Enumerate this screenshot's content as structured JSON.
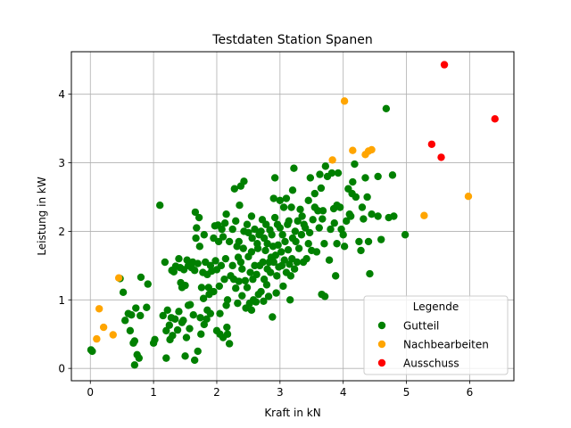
{
  "chart_data": {
    "type": "scatter",
    "title": "Testdaten Station Spanen",
    "xlabel": "Kraft in kN",
    "ylabel": "Leistung in kW",
    "xlim": [
      -0.3,
      6.7
    ],
    "ylim": [
      -0.18,
      4.62
    ],
    "xticks": [
      0,
      1,
      2,
      3,
      4,
      5,
      6
    ],
    "yticks": [
      0,
      1,
      2,
      3,
      4
    ],
    "grid": true,
    "legend": {
      "title": "Legende",
      "placement": "lower-right"
    },
    "series": [
      {
        "name": "Gutteil",
        "color": "#008000",
        "points": [
          [
            0.01,
            0.27
          ],
          [
            0.03,
            0.25
          ],
          [
            0.47,
            1.31
          ],
          [
            0.52,
            1.11
          ],
          [
            0.55,
            0.7
          ],
          [
            0.6,
            0.8
          ],
          [
            0.63,
            0.55
          ],
          [
            0.65,
            0.78
          ],
          [
            0.68,
            0.37
          ],
          [
            0.7,
            0.4
          ],
          [
            0.72,
            0.88
          ],
          [
            0.7,
            0.05
          ],
          [
            0.74,
            0.2
          ],
          [
            0.77,
            0.15
          ],
          [
            0.79,
            0.77
          ],
          [
            0.8,
            1.33
          ],
          [
            0.89,
            0.89
          ],
          [
            0.91,
            1.23
          ],
          [
            1.0,
            0.37
          ],
          [
            1.02,
            0.42
          ],
          [
            1.1,
            2.38
          ],
          [
            1.15,
            0.77
          ],
          [
            1.18,
            1.55
          ],
          [
            1.2,
            0.55
          ],
          [
            1.2,
            0.15
          ],
          [
            1.22,
            0.85
          ],
          [
            1.25,
            0.63
          ],
          [
            1.26,
            0.42
          ],
          [
            1.28,
            0.74
          ],
          [
            1.29,
            1.43
          ],
          [
            1.3,
            0.48
          ],
          [
            1.32,
            1.41
          ],
          [
            1.34,
            0.72
          ],
          [
            1.35,
            1.49
          ],
          [
            1.38,
            0.56
          ],
          [
            1.4,
            1.6
          ],
          [
            1.4,
            0.83
          ],
          [
            1.42,
            1.47
          ],
          [
            1.43,
            1.25
          ],
          [
            1.45,
            1.18
          ],
          [
            1.45,
            0.67
          ],
          [
            1.47,
            0.7
          ],
          [
            1.48,
            1.44
          ],
          [
            1.5,
            0.18
          ],
          [
            1.5,
            1.21
          ],
          [
            1.52,
            0.45
          ],
          [
            1.53,
            1.58
          ],
          [
            1.55,
            0.92
          ],
          [
            1.55,
            1.5
          ],
          [
            1.57,
            0.58
          ],
          [
            1.58,
            0.93
          ],
          [
            1.6,
            1.47
          ],
          [
            1.62,
            1.55
          ],
          [
            1.63,
            0.78
          ],
          [
            1.65,
            1.43
          ],
          [
            1.65,
            0.12
          ],
          [
            1.66,
            2.28
          ],
          [
            1.67,
            1.9
          ],
          [
            1.68,
            2.05
          ],
          [
            1.7,
            1.53
          ],
          [
            1.7,
            0.25
          ],
          [
            1.72,
            2.2
          ],
          [
            1.73,
            1.78
          ],
          [
            1.74,
            0.74
          ],
          [
            1.75,
            0.5
          ],
          [
            1.76,
            1.18
          ],
          [
            1.78,
            1.4
          ],
          [
            1.79,
            1.02
          ],
          [
            1.8,
            1.95
          ],
          [
            1.8,
            0.64
          ],
          [
            1.82,
            1.55
          ],
          [
            1.84,
            0.72
          ],
          [
            1.85,
            1.37
          ],
          [
            1.85,
            0.85
          ],
          [
            1.87,
            1.18
          ],
          [
            1.88,
            1.08
          ],
          [
            1.9,
            0.8
          ],
          [
            1.9,
            1.5
          ],
          [
            1.92,
            1.42
          ],
          [
            1.95,
            1.9
          ],
          [
            1.97,
            2.08
          ],
          [
            1.98,
            1.57
          ],
          [
            2.0,
            0.55
          ],
          [
            2.0,
            1.44
          ],
          [
            2.02,
            2.09
          ],
          [
            2.03,
            1.85
          ],
          [
            2.04,
            1.2
          ],
          [
            2.05,
            0.8
          ],
          [
            2.05,
            0.5
          ],
          [
            2.07,
            1.5
          ],
          [
            2.08,
            2.03
          ],
          [
            2.1,
            0.45
          ],
          [
            2.1,
            1.92
          ],
          [
            2.12,
            1.3
          ],
          [
            2.13,
            2.12
          ],
          [
            2.14,
            1.6
          ],
          [
            2.15,
            0.92
          ],
          [
            2.16,
            0.6
          ],
          [
            2.17,
            1.0
          ],
          [
            2.17,
            0.5
          ],
          [
            2.2,
            0.36
          ],
          [
            2.2,
            1.85
          ],
          [
            2.22,
            1.35
          ],
          [
            2.25,
            2.03
          ],
          [
            2.25,
            1.5
          ],
          [
            2.27,
            1.3
          ],
          [
            2.28,
            2.62
          ],
          [
            2.3,
            1.17
          ],
          [
            2.3,
            2.15
          ],
          [
            2.32,
            1.78
          ],
          [
            2.33,
            0.95
          ],
          [
            2.34,
            1.62
          ],
          [
            2.35,
            1.27
          ],
          [
            2.35,
            1.85
          ],
          [
            2.36,
            2.38
          ],
          [
            2.38,
            1.55
          ],
          [
            2.38,
            2.66
          ],
          [
            2.4,
            1.45
          ],
          [
            2.4,
            1.06
          ],
          [
            2.42,
            1.75
          ],
          [
            2.43,
            2.73
          ],
          [
            2.43,
            2.0
          ],
          [
            2.45,
            1.28
          ],
          [
            2.46,
            0.88
          ],
          [
            2.48,
            1.18
          ],
          [
            2.48,
            2.1
          ],
          [
            2.5,
            1.98
          ],
          [
            2.5,
            1.63
          ],
          [
            2.52,
            0.95
          ],
          [
            2.53,
            1.4
          ],
          [
            2.55,
            1.7
          ],
          [
            2.55,
            0.85
          ],
          [
            2.56,
            1.9
          ],
          [
            2.57,
            1.3
          ],
          [
            2.58,
            1.0
          ],
          [
            2.6,
            2.03
          ],
          [
            2.6,
            1.5
          ],
          [
            2.62,
            0.97
          ],
          [
            2.63,
            1.37
          ],
          [
            2.64,
            1.82
          ],
          [
            2.65,
            1.75
          ],
          [
            2.66,
            1.08
          ],
          [
            2.67,
            1.95
          ],
          [
            2.68,
            1.5
          ],
          [
            2.7,
            2.0
          ],
          [
            2.7,
            1.12
          ],
          [
            2.72,
            2.17
          ],
          [
            2.73,
            1.55
          ],
          [
            2.74,
            0.98
          ],
          [
            2.75,
            1.9
          ],
          [
            2.75,
            1.3
          ],
          [
            2.77,
            1.72
          ],
          [
            2.78,
            2.1
          ],
          [
            2.79,
            1.22
          ],
          [
            2.8,
            1.45
          ],
          [
            2.8,
            1.82
          ],
          [
            2.82,
            1.05
          ],
          [
            2.83,
            1.55
          ],
          [
            2.84,
            2.02
          ],
          [
            2.85,
            1.4
          ],
          [
            2.86,
            1.62
          ],
          [
            2.87,
            1.95
          ],
          [
            2.88,
            0.75
          ],
          [
            2.89,
            1.78
          ],
          [
            2.9,
            2.48
          ],
          [
            2.9,
            1.55
          ],
          [
            2.92,
            2.2
          ],
          [
            2.93,
            1.65
          ],
          [
            2.94,
            1.1
          ],
          [
            2.95,
            1.35
          ],
          [
            2.96,
            2.1
          ],
          [
            2.97,
            1.8
          ],
          [
            2.98,
            1.48
          ],
          [
            3.0,
            2.45
          ],
          [
            3.0,
            2.05
          ],
          [
            3.02,
            1.7
          ],
          [
            3.03,
            1.5
          ],
          [
            3.04,
            1.95
          ],
          [
            3.05,
            1.2
          ],
          [
            3.06,
            2.35
          ],
          [
            3.07,
            1.58
          ],
          [
            3.08,
            1.85
          ],
          [
            3.1,
            2.48
          ],
          [
            3.1,
            1.4
          ],
          [
            3.12,
            2.1
          ],
          [
            3.13,
            1.73
          ],
          [
            3.14,
            2.15
          ],
          [
            3.15,
            1.52
          ],
          [
            3.16,
            1.0
          ],
          [
            3.17,
            1.35
          ],
          [
            3.18,
            2.35
          ],
          [
            3.19,
            1.6
          ],
          [
            3.2,
            2.6
          ],
          [
            3.2,
            1.9
          ],
          [
            3.22,
            2.92
          ],
          [
            3.23,
            1.45
          ],
          [
            3.24,
            2.0
          ],
          [
            3.25,
            1.85
          ],
          [
            3.27,
            1.55
          ],
          [
            3.28,
            2.15
          ],
          [
            3.3,
            1.75
          ],
          [
            3.32,
            2.32
          ],
          [
            3.34,
            1.95
          ],
          [
            3.35,
            2.22
          ],
          [
            3.37,
            1.55
          ],
          [
            3.38,
            2.1
          ],
          [
            3.4,
            2.05
          ],
          [
            3.42,
            1.6
          ],
          [
            3.45,
            2.45
          ],
          [
            3.45,
            1.82
          ],
          [
            3.47,
            1.98
          ],
          [
            3.48,
            2.78
          ],
          [
            3.5,
            1.72
          ],
          [
            3.52,
            2.17
          ],
          [
            3.55,
            2.55
          ],
          [
            3.55,
            2.35
          ],
          [
            3.58,
            1.7
          ],
          [
            3.6,
            2.3
          ],
          [
            3.62,
            2.05
          ],
          [
            3.63,
            2.83
          ],
          [
            3.65,
            2.63
          ],
          [
            3.66,
            1.08
          ],
          [
            3.67,
            2.18
          ],
          [
            3.68,
            2.3
          ],
          [
            3.7,
            1.82
          ],
          [
            3.71,
            1.05
          ],
          [
            3.72,
            2.95
          ],
          [
            3.75,
            2.8
          ],
          [
            3.78,
            1.58
          ],
          [
            3.8,
            2.03
          ],
          [
            3.82,
            2.85
          ],
          [
            3.85,
            2.33
          ],
          [
            3.86,
            2.12
          ],
          [
            3.88,
            1.35
          ],
          [
            3.9,
            1.82
          ],
          [
            3.9,
            2.38
          ],
          [
            3.92,
            2.85
          ],
          [
            3.95,
            2.35
          ],
          [
            3.97,
            2.03
          ],
          [
            4.0,
            1.95
          ],
          [
            4.02,
            1.78
          ],
          [
            4.05,
            2.15
          ],
          [
            4.08,
            2.62
          ],
          [
            4.1,
            2.25
          ],
          [
            4.12,
            2.22
          ],
          [
            4.14,
            2.55
          ],
          [
            4.15,
            2.72
          ],
          [
            4.18,
            2.98
          ],
          [
            4.2,
            2.5
          ],
          [
            4.25,
            1.85
          ],
          [
            4.28,
            1.72
          ],
          [
            4.3,
            2.35
          ],
          [
            4.32,
            2.18
          ],
          [
            4.35,
            2.78
          ],
          [
            4.38,
            2.5
          ],
          [
            4.4,
            1.85
          ],
          [
            4.42,
            1.38
          ],
          [
            4.45,
            2.25
          ],
          [
            4.55,
            2.8
          ],
          [
            4.6,
            1.88
          ],
          [
            4.68,
            3.79
          ],
          [
            4.72,
            2.2
          ],
          [
            4.78,
            2.82
          ],
          [
            4.8,
            2.22
          ],
          [
            4.98,
            1.95
          ],
          [
            4.55,
            2.22
          ],
          [
            2.55,
            2.22
          ],
          [
            2.92,
            2.78
          ],
          [
            2.15,
            2.25
          ],
          [
            1.95,
            1.12
          ]
        ]
      },
      {
        "name": "Nachbearbeiten",
        "color": "#ffa500",
        "points": [
          [
            0.1,
            0.43
          ],
          [
            0.14,
            0.87
          ],
          [
            0.21,
            0.6
          ],
          [
            0.36,
            0.49
          ],
          [
            0.45,
            1.32
          ],
          [
            3.83,
            3.04
          ],
          [
            4.02,
            3.9
          ],
          [
            4.15,
            3.18
          ],
          [
            4.35,
            3.12
          ],
          [
            4.4,
            3.17
          ],
          [
            4.45,
            3.19
          ],
          [
            5.28,
            2.23
          ],
          [
            5.98,
            2.51
          ]
        ]
      },
      {
        "name": "Ausschuss",
        "color": "#ff0000",
        "points": [
          [
            5.4,
            3.27
          ],
          [
            5.55,
            3.08
          ],
          [
            5.6,
            4.43
          ],
          [
            6.4,
            3.64
          ]
        ]
      }
    ]
  }
}
